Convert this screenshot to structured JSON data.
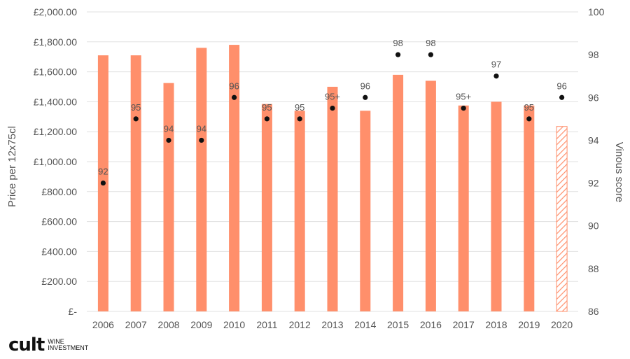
{
  "brand": {
    "name": "cult",
    "sub_line_1": "WINE",
    "sub_line_2": "INVESTMENT"
  },
  "chart_data": {
    "type": "bar",
    "title": "",
    "categories": [
      "2006",
      "2007",
      "2008",
      "2009",
      "2010",
      "2011",
      "2012",
      "2013",
      "2014",
      "2015",
      "2016",
      "2017",
      "2018",
      "2019",
      "2020"
    ],
    "series": [
      {
        "name": "Price per 12x75cl",
        "type": "bar",
        "axis": "left",
        "color": "#FF8F6B",
        "values": [
          1710,
          1710,
          1525,
          1760,
          1780,
          1385,
          1340,
          1500,
          1340,
          1580,
          1540,
          1375,
          1400,
          1375,
          1235
        ],
        "hatched_categories": [
          "2020"
        ]
      },
      {
        "name": "Vinous score",
        "type": "scatter",
        "axis": "right",
        "color": "#111111",
        "values": [
          92,
          95,
          94,
          94,
          96,
          95,
          95,
          95.5,
          96,
          98,
          98,
          95.5,
          97,
          95,
          96
        ],
        "labels": [
          "92",
          "95",
          "94",
          "94",
          "96",
          "95",
          "95",
          "95+",
          "96",
          "98",
          "98",
          "95+",
          "97",
          "95",
          "96"
        ]
      }
    ],
    "y_left": {
      "label": "Price per 12x75cl",
      "ylim": [
        0,
        2000
      ],
      "ticks": [
        0,
        200,
        400,
        600,
        800,
        1000,
        1200,
        1400,
        1600,
        1800,
        2000
      ],
      "tick_labels": [
        "£-",
        "£200.00",
        "£400.00",
        "£600.00",
        "£800.00",
        "£1,000.00",
        "£1,200.00",
        "£1,400.00",
        "£1,600.00",
        "£1,800.00",
        "£2,000.00"
      ]
    },
    "y_right": {
      "label": "Vinous score",
      "ylim": [
        86,
        100
      ],
      "ticks": [
        86,
        88,
        90,
        92,
        94,
        96,
        98,
        100
      ],
      "tick_labels": [
        "86",
        "88",
        "90",
        "92",
        "94",
        "96",
        "98",
        "100"
      ]
    },
    "grid": true,
    "legend": "none",
    "colors": {
      "bar": "#FF8F6B",
      "dot": "#111111",
      "grid": "#E0E0E0",
      "text": "#555555"
    }
  }
}
